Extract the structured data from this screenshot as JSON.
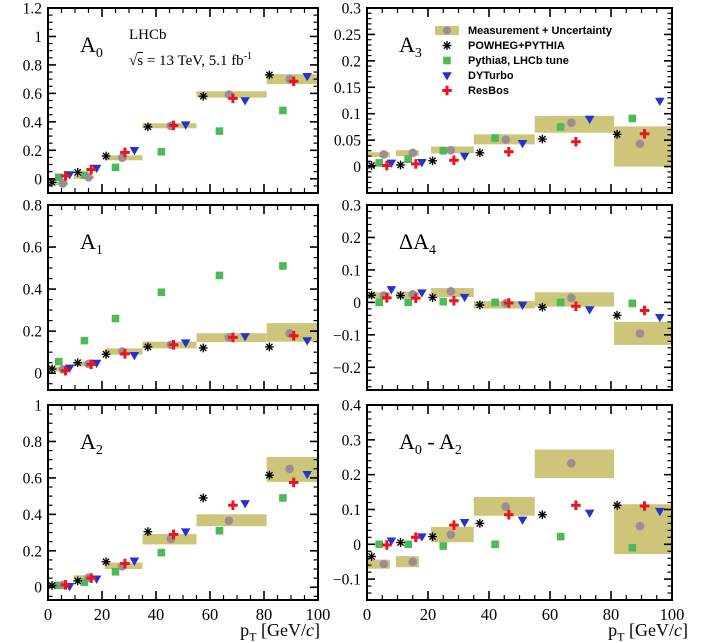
{
  "header": {
    "experiment": "LHCb",
    "sqrt": "√",
    "s": "s",
    "rest": " = 13 TeV, 5.1 fb",
    "sup": "-1"
  },
  "colors": {
    "measurement_box": "#cdc57a",
    "measurement_marker": "#9b8d92",
    "powheg": "#000000",
    "pythia8": "#4eb957",
    "dyturbo": "#2433cf",
    "resbos": "#ea1520",
    "frame": "#000000"
  },
  "chart_data": {
    "type": "scatter",
    "xlabel": "pT [GeV/c]",
    "xlabel_parts": {
      "p": "p",
      "sub": "T",
      "mid": " [GeV/",
      "c": "c",
      "end": "]"
    },
    "xlim": [
      0,
      100
    ],
    "x_ticks": [
      0,
      20,
      40,
      60,
      80,
      100
    ],
    "x_minor_step": 5,
    "legend": [
      {
        "key": "measurement",
        "label": "Measurement + Uncertainty"
      },
      {
        "key": "powheg",
        "label": "POWHEG+PYTHIA"
      },
      {
        "key": "pythia8",
        "label": "Pythia8, LHCb tune"
      },
      {
        "key": "dyturbo",
        "label": "DYTurbo"
      },
      {
        "key": "resbos",
        "label": "ResBos"
      }
    ],
    "bin_box_x": [
      [
        0,
        7.5
      ],
      [
        9.5,
        17
      ],
      [
        21,
        35
      ],
      [
        35,
        55
      ],
      [
        55,
        81
      ],
      [
        81,
        100
      ]
    ],
    "series_x": {
      "powheg": [
        1.5,
        11,
        21.5,
        37,
        57.5,
        82
      ],
      "pythia8": [
        4,
        13.5,
        25,
        42,
        63.5,
        87
      ],
      "measurement": [
        5.5,
        15,
        27.5,
        45.5,
        67,
        89.5
      ],
      "resbos": [
        6.5,
        16,
        28.5,
        46.5,
        68.5,
        91
      ],
      "dyturbo": [
        8,
        18,
        32,
        51,
        73,
        96
      ]
    },
    "panels": [
      {
        "key": "A0",
        "title": "A0",
        "row": 0,
        "col": 0,
        "title_parts": [
          {
            "t": "A"
          },
          {
            "t": "0",
            "sub": true
          }
        ],
        "ylim": [
          -0.1,
          1.2
        ],
        "y_ticks": [
          0,
          0.2,
          0.4,
          0.6,
          0.8,
          1,
          1.2
        ],
        "y_minor_step": 0.05,
        "boxes_y": [
          [
            -0.045,
            -0.02
          ],
          [
            0.0,
            0.022
          ],
          [
            0.13,
            0.165
          ],
          [
            0.355,
            0.39
          ],
          [
            0.57,
            0.615
          ],
          [
            0.665,
            0.735
          ]
        ],
        "measurement": [
          -0.033,
          0.01,
          0.148,
          0.372,
          0.592,
          0.7
        ],
        "powheg": [
          -0.025,
          0.045,
          0.16,
          0.365,
          0.58,
          0.73
        ],
        "pythia8": [
          0.01,
          0.025,
          0.08,
          0.19,
          0.335,
          0.48
        ],
        "dyturbo": [
          0.03,
          0.075,
          0.2,
          0.38,
          0.55,
          0.72
        ],
        "resbos": [
          0.02,
          0.065,
          0.185,
          0.375,
          0.565,
          0.685
        ]
      },
      {
        "key": "A3",
        "title": "A3",
        "row": 0,
        "col": 1,
        "title_parts": [
          {
            "t": "A"
          },
          {
            "t": "3",
            "sub": true
          }
        ],
        "ylim": [
          -0.05,
          0.3
        ],
        "y_ticks": [
          0,
          0.05,
          0.1,
          0.15,
          0.2,
          0.25,
          0.3
        ],
        "y_minor_step": 0.01,
        "boxes_y": [
          [
            0.018,
            0.027
          ],
          [
            0.02,
            0.031
          ],
          [
            0.025,
            0.038
          ],
          [
            0.042,
            0.061
          ],
          [
            0.064,
            0.096
          ],
          [
            0.0,
            0.076
          ]
        ],
        "measurement": [
          0.023,
          0.026,
          0.031,
          0.051,
          0.083,
          0.043
        ],
        "powheg": [
          0.002,
          0.003,
          0.011,
          0.026,
          0.052,
          0.061
        ],
        "pythia8": [
          0.007,
          0.014,
          0.03,
          0.054,
          0.075,
          0.091
        ],
        "dyturbo": [
          0.007,
          0.008,
          0.02,
          0.044,
          0.09,
          0.124
        ],
        "resbos": [
          0.002,
          0.005,
          0.012,
          0.028,
          0.047,
          0.062
        ]
      },
      {
        "key": "A1",
        "title": "A1",
        "row": 1,
        "col": 0,
        "title_parts": [
          {
            "t": "A"
          },
          {
            "t": "1",
            "sub": true
          }
        ],
        "ylim": [
          -0.08,
          0.8
        ],
        "y_ticks": [
          0,
          0.2,
          0.4,
          0.6,
          0.8
        ],
        "y_minor_step": 0.05,
        "boxes_y": [
          [
            0.008,
            0.03
          ],
          [
            0.033,
            0.056
          ],
          [
            0.088,
            0.118
          ],
          [
            0.118,
            0.15
          ],
          [
            0.148,
            0.19
          ],
          [
            0.15,
            0.238
          ]
        ],
        "measurement": [
          0.018,
          0.044,
          0.103,
          0.135,
          0.17,
          0.19
        ],
        "powheg": [
          0.02,
          0.05,
          0.09,
          0.125,
          0.12,
          0.125
        ],
        "pythia8": [
          0.055,
          0.155,
          0.26,
          0.385,
          0.465,
          0.51
        ],
        "dyturbo": [
          0.025,
          0.048,
          0.085,
          0.145,
          0.175,
          0.155
        ],
        "resbos": [
          0.012,
          0.042,
          0.092,
          0.135,
          0.17,
          0.178
        ]
      },
      {
        "key": "dA4",
        "title": "ΔA4",
        "row": 1,
        "col": 1,
        "title_parts": [
          {
            "t": "ΔA"
          },
          {
            "t": "4",
            "sub": true
          }
        ],
        "ylim": [
          -0.27,
          0.3
        ],
        "y_ticks": [
          -0.2,
          -0.1,
          0,
          0.1,
          0.2,
          0.3
        ],
        "y_minor_step": 0.02,
        "boxes_y": [
          [
            0.012,
            0.031
          ],
          [
            0.013,
            0.033
          ],
          [
            0.016,
            0.044
          ],
          [
            -0.019,
            0.004
          ],
          [
            -0.013,
            0.031
          ],
          [
            -0.131,
            -0.06
          ]
        ],
        "measurement": [
          0.021,
          0.025,
          0.034,
          -0.003,
          0.014,
          -0.096
        ],
        "powheg": [
          0.022,
          0.021,
          0.015,
          -0.008,
          -0.015,
          -0.04
        ],
        "pythia8": [
          0.0,
          0.0,
          0.002,
          0.0,
          0.0,
          -0.003
        ],
        "dyturbo": [
          0.04,
          0.03,
          0.016,
          -0.008,
          -0.022,
          -0.046
        ],
        "resbos": [
          0.014,
          0.013,
          0.005,
          -0.002,
          -0.012,
          -0.025
        ]
      },
      {
        "key": "A2",
        "title": "A2",
        "row": 2,
        "col": 0,
        "title_parts": [
          {
            "t": "A"
          },
          {
            "t": "2",
            "sub": true
          }
        ],
        "ylim": [
          -0.07,
          1.0
        ],
        "y_ticks": [
          0,
          0.2,
          0.4,
          0.6,
          0.8,
          1
        ],
        "y_minor_step": 0.05,
        "boxes_y": [
          [
            0.002,
            0.022
          ],
          [
            0.04,
            0.066
          ],
          [
            0.1,
            0.135
          ],
          [
            0.235,
            0.292
          ],
          [
            0.335,
            0.4
          ],
          [
            0.578,
            0.715
          ]
        ],
        "measurement": [
          0.013,
          0.053,
          0.115,
          0.265,
          0.365,
          0.65
        ],
        "powheg": [
          0.01,
          0.035,
          0.14,
          0.305,
          0.49,
          0.615
        ],
        "pythia8": [
          0.01,
          0.027,
          0.085,
          0.19,
          0.31,
          0.49
        ],
        "dyturbo": [
          0.005,
          0.046,
          0.145,
          0.305,
          0.46,
          0.62
        ],
        "resbos": [
          0.013,
          0.05,
          0.13,
          0.29,
          0.45,
          0.575
        ]
      },
      {
        "key": "A0mA2",
        "title": "A0 - A2",
        "row": 2,
        "col": 1,
        "title_parts": [
          {
            "t": "A"
          },
          {
            "t": "0",
            "sub": true
          },
          {
            "t": " - "
          },
          {
            "t": "A"
          },
          {
            "t": "2",
            "sub": true
          }
        ],
        "ylim": [
          -0.16,
          0.4
        ],
        "y_ticks": [
          -0.1,
          0,
          0.1,
          0.2,
          0.3,
          0.4
        ],
        "y_minor_step": 0.02,
        "boxes_y": [
          [
            -0.07,
            -0.044
          ],
          [
            -0.066,
            -0.034
          ],
          [
            0.006,
            0.05
          ],
          [
            0.082,
            0.136
          ],
          [
            0.19,
            0.272
          ],
          [
            -0.028,
            0.115
          ]
        ],
        "measurement": [
          -0.057,
          -0.05,
          0.028,
          0.108,
          0.233,
          0.052
        ],
        "powheg": [
          -0.035,
          0.005,
          0.022,
          0.06,
          0.085,
          0.112
        ],
        "pythia8": [
          0.0,
          0.0,
          -0.005,
          0.0,
          0.022,
          -0.01
        ],
        "dyturbo": [
          0.01,
          0.022,
          0.063,
          0.07,
          0.09,
          0.095
        ],
        "resbos": [
          -0.002,
          0.02,
          0.055,
          0.085,
          0.112,
          0.11
        ]
      }
    ]
  }
}
